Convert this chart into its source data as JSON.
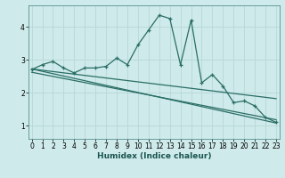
{
  "xlabel": "Humidex (Indice chaleur)",
  "bg_color": "#ceeaea",
  "grid_color": "#b8d8d8",
  "line_color": "#2a6e65",
  "main_series_x": [
    0,
    1,
    2,
    3,
    4,
    5,
    6,
    7,
    8,
    9,
    10,
    11,
    12,
    13,
    14,
    15,
    16,
    17,
    18,
    19,
    20,
    21,
    22,
    23
  ],
  "main_series_y": [
    2.7,
    2.85,
    2.95,
    2.75,
    2.6,
    2.75,
    2.75,
    2.8,
    3.05,
    2.85,
    3.45,
    3.9,
    4.35,
    4.25,
    2.85,
    4.2,
    2.3,
    2.55,
    2.2,
    1.7,
    1.75,
    1.6,
    1.25,
    1.1
  ],
  "trend1_x": [
    0,
    23
  ],
  "trend1_y": [
    2.72,
    1.08
  ],
  "trend2_x": [
    0,
    23
  ],
  "trend2_y": [
    2.62,
    1.18
  ],
  "trend3_x": [
    0,
    23
  ],
  "trend3_y": [
    2.72,
    1.82
  ],
  "xlim": [
    -0.3,
    23.3
  ],
  "ylim": [
    0.6,
    4.65
  ],
  "yticks": [
    1,
    2,
    3,
    4
  ],
  "xticks": [
    0,
    1,
    2,
    3,
    4,
    5,
    6,
    7,
    8,
    9,
    10,
    11,
    12,
    13,
    14,
    15,
    16,
    17,
    18,
    19,
    20,
    21,
    22,
    23
  ],
  "figsize": [
    3.2,
    2.0
  ],
  "dpi": 100
}
